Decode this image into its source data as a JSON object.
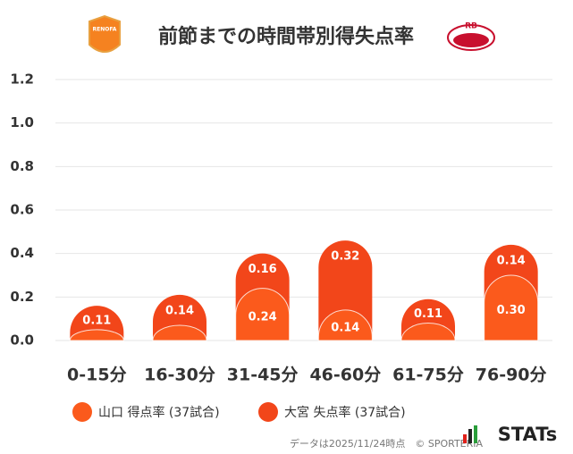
{
  "chart_data": {
    "type": "stacked_bar",
    "title": "前節までの時間帯別得失点率",
    "home_logo_text": "RENOFA",
    "away_logo_text": "RB",
    "categories": [
      "0-15分",
      "16-30分",
      "31-45分",
      "46-60分",
      "61-75分",
      "76-90分"
    ],
    "series": [
      {
        "name": "山口 得点率 (37試合)",
        "color": "#fb5a1c",
        "values": [
          0.05,
          0.07,
          0.24,
          0.14,
          0.08,
          0.3
        ],
        "value_labels": [
          null,
          null,
          "0.24",
          "0.14",
          null,
          "0.30"
        ]
      },
      {
        "name": "大宮 失点率 (37試合)",
        "color": "#f2461a",
        "values": [
          0.11,
          0.14,
          0.16,
          0.32,
          0.11,
          0.14
        ],
        "value_labels": [
          "0.11",
          "0.14",
          "0.16",
          "0.32",
          "0.11",
          "0.14"
        ]
      }
    ],
    "ylim": [
      0,
      1.2
    ],
    "yticks": [
      {
        "value": 0,
        "label": "0.0"
      },
      {
        "value": 0.2,
        "label": "0.2"
      },
      {
        "value": 0.4,
        "label": "0.4"
      },
      {
        "value": 0.6,
        "label": "0.6"
      },
      {
        "value": 0.8,
        "label": "0.8"
      },
      {
        "value": 1.0,
        "label": "1.0"
      },
      {
        "value": 1.2,
        "label": "1.2"
      }
    ],
    "grid": true,
    "footer": "データは2025/11/24時点　© SPORTERIA",
    "brand": "STATs"
  }
}
